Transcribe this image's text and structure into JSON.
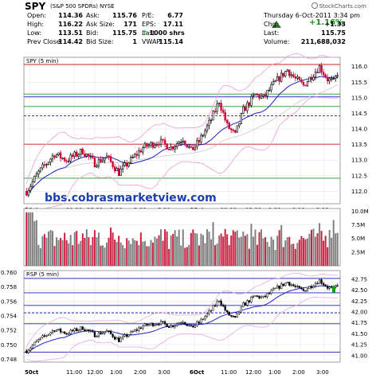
{
  "header": {
    "symbol": "SPY",
    "description": "(S&P 500 SPDRs) NYSE",
    "brand": "StockCharts.com",
    "date_time": "Thursday 6-Oct-2011 3:34 pm",
    "change_pct": "+1.16%",
    "quote_rows": [
      {
        "k1": "Open:",
        "v1": "114.36",
        "k2": "Ask:",
        "v2": "115.76",
        "k3": "P/E:",
        "v3": "6.77",
        "k4": "",
        "v4": ""
      },
      {
        "k1": "High:",
        "v1": "116.22",
        "k2": "Ask Size:",
        "v2": "171",
        "k3": "EPS:",
        "v3": "17.11",
        "k4": "Chg:",
        "v4": "+1.33"
      },
      {
        "k1": "Low:",
        "v1": "113.51",
        "k2": "Bid:",
        "v2": "115.75",
        "k3": "Last",
        "v3": "1000 shrs",
        "k4": "Last:",
        "v4": "115.75"
      },
      {
        "k1": "Prev Close:",
        "v1": "114.42",
        "k2": "Bid Size:",
        "v2": "1",
        "k3": "VWAP:",
        "v3": "115.14",
        "k4": "Volume:",
        "v4": "211,688,032"
      }
    ],
    "last_arrow_color": "#1a8f1a"
  },
  "chart_data": [
    {
      "type": "candlestick",
      "panel_label": "SPY (5 min)",
      "y_ticks": [
        "116.0",
        "115.5",
        "115.0",
        "114.5",
        "114.0",
        "113.5",
        "113.0",
        "112.5",
        "112.0"
      ],
      "y_range": [
        111.6,
        116.3
      ],
      "x_labels": [
        "50ct",
        "11:00",
        "12:00",
        "1:00",
        "2:00",
        "3:00",
        "6Oct",
        "11:00",
        "12:00",
        "1:00",
        "2:00",
        "3:00"
      ],
      "horizontal_levels": [
        {
          "value": 116.07,
          "color": "#d62020"
        },
        {
          "value": 115.12,
          "color": "#1a9a1a"
        },
        {
          "value": 115.03,
          "color": "#2020c0"
        },
        {
          "value": 114.72,
          "color": "#1a9a1a"
        },
        {
          "value": 114.42,
          "color": "#2020c0",
          "dashed": true
        },
        {
          "value": 113.51,
          "color": "#d62020"
        },
        {
          "value": 112.42,
          "color": "#1a9a1a"
        }
      ],
      "overlay_text": "bbs.cobrasmarketview.com",
      "ma_color": "#2020c0",
      "band_color": "#e8a8d8",
      "up_color": "#000000",
      "down_color": "#cc0033"
    },
    {
      "type": "bar",
      "panel_label": "Volume",
      "y_ticks": [
        "10.0M",
        "7.5M",
        "5.0M",
        "2.5M"
      ],
      "y_range": [
        0,
        10.5
      ],
      "bar_color": "#808080",
      "down_bar_color": "#cc2244"
    },
    {
      "type": "line",
      "panel_label": "RSP (5 min)",
      "left_ticks": [
        "0.760",
        "0.758",
        "0.756",
        "0.754",
        "0.752",
        "0.750",
        "0.748"
      ],
      "right_ticks": [
        "42.75",
        "42.50",
        "42.25",
        "42.00",
        "41.75",
        "41.50",
        "41.25",
        "41.00"
      ],
      "x_labels": [
        "50ct",
        "11:00",
        "12:00",
        "1:00",
        "2:00",
        "3:00",
        "6Oct",
        "11:00",
        "12:00",
        "1:00",
        "2:00",
        "3:00"
      ],
      "horizontal_levels": [
        {
          "value": 42.77,
          "color": "#2020c0"
        },
        {
          "value": 42.44,
          "color": "#2020c0"
        },
        {
          "value": 42.15,
          "color": "#2020c0"
        },
        {
          "value": 41.98,
          "color": "#2020c0",
          "dashed": true
        },
        {
          "value": 41.73,
          "color": "#2020c0"
        },
        {
          "value": 41.08,
          "color": "#2020c0"
        }
      ],
      "y_range": [
        40.85,
        42.95
      ]
    }
  ]
}
